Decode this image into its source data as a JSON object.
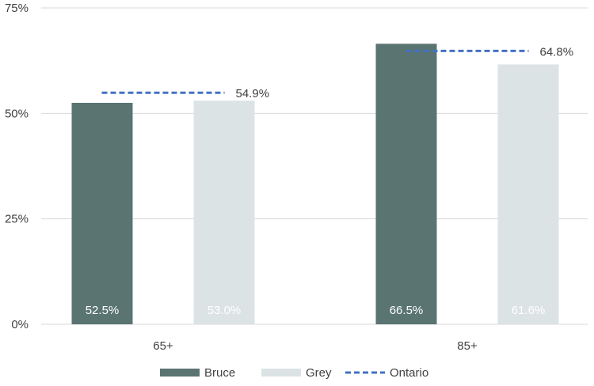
{
  "chart_data": {
    "type": "bar",
    "categories": [
      "65+",
      "85+"
    ],
    "series": [
      {
        "name": "Bruce",
        "values": [
          52.5,
          66.5
        ],
        "labels": [
          "52.5%",
          "66.5%"
        ],
        "color": "#5a7472"
      },
      {
        "name": "Grey",
        "values": [
          53.0,
          61.6
        ],
        "labels": [
          "53.0%",
          "61.6%"
        ],
        "color": "#dce3e4"
      }
    ],
    "reference": {
      "name": "Ontario",
      "values": [
        54.9,
        64.8
      ],
      "labels": [
        "54.9%",
        "64.8%"
      ],
      "color": "#4472c4",
      "style": "dashed"
    },
    "y_ticks": [
      0,
      25,
      50,
      75
    ],
    "y_tick_labels": [
      "0%",
      "25%",
      "50%",
      "75%"
    ],
    "ylim": [
      0,
      75
    ],
    "grid": true,
    "legend_position": "bottom",
    "title": "",
    "xlabel": "",
    "ylabel": ""
  }
}
